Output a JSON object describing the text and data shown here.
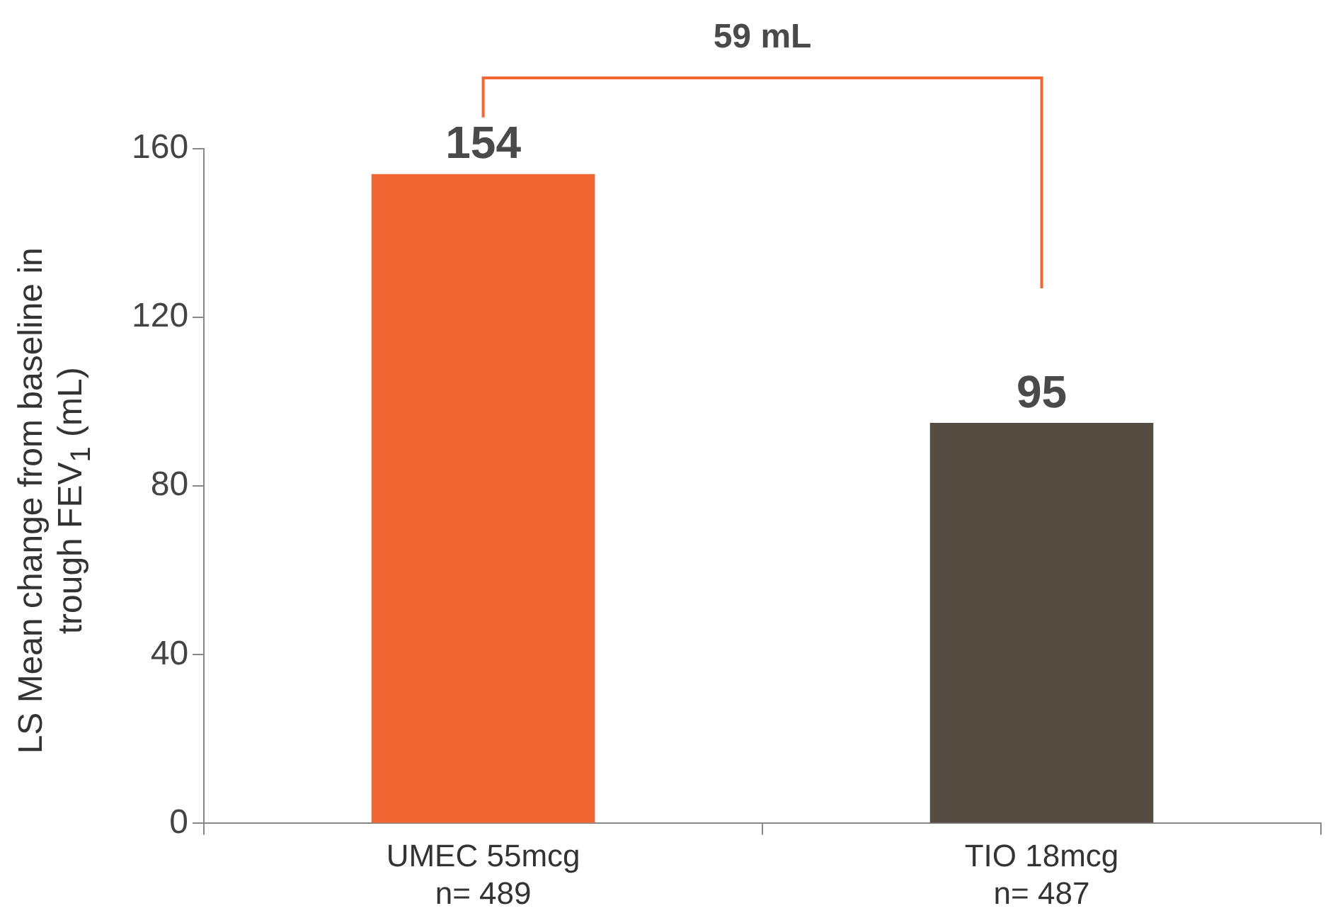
{
  "chart_data": {
    "type": "bar",
    "categories": [
      "UMEC 55mcg\nn= 489",
      "TIO 18mcg\nn= 487"
    ],
    "values": [
      154,
      95
    ],
    "colors": [
      "#f26633",
      "#554d42"
    ],
    "ylabel": "LS Mean change from baseline in trough FEV$_{1}$ (mL)",
    "ylim": [
      0,
      160
    ],
    "yticks": [
      0,
      40,
      80,
      120,
      160
    ],
    "data_labels": true,
    "grid": false,
    "legend": false,
    "annotations": [
      "59 mL"
    ]
  }
}
